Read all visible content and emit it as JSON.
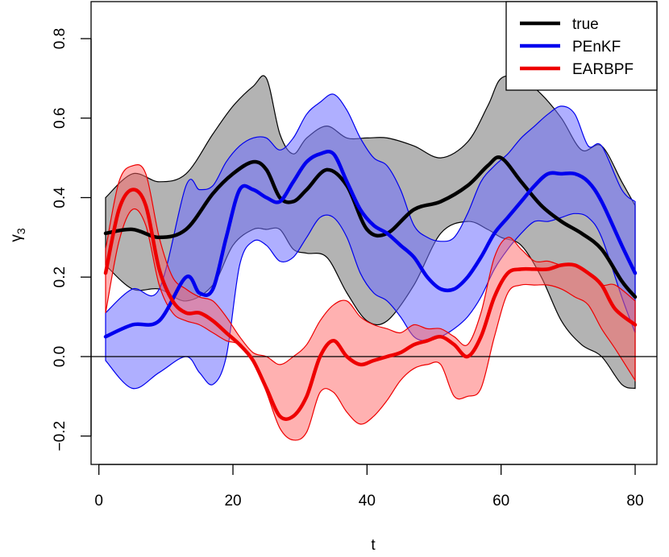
{
  "chart_data": {
    "type": "line",
    "xlabel": "t",
    "ylabel_base": "γ",
    "ylabel_sub": "3",
    "xlim": [
      1,
      80
    ],
    "ylim": [
      -0.3,
      0.9
    ],
    "xticks": [
      0,
      20,
      40,
      60,
      80
    ],
    "yticks": [
      -0.2,
      0.0,
      0.2,
      0.4,
      0.6,
      0.8
    ],
    "xtick_labels": [
      "0",
      "20",
      "40",
      "60",
      "80"
    ],
    "ytick_labels": [
      "−0.2",
      "0.0",
      "0.2",
      "0.4",
      "0.6",
      "0.8"
    ],
    "hline": 0.0,
    "legend_position": "top-right",
    "series": [
      {
        "name": "true",
        "color": "#000000",
        "band_fill": "rgba(128,128,128,0.6)",
        "x": [
          1,
          5,
          9,
          13,
          17,
          20,
          23,
          25,
          27,
          29,
          31,
          34,
          37,
          40,
          43,
          47,
          51,
          55,
          58,
          60,
          63,
          66,
          69,
          72,
          75,
          78,
          80
        ],
        "value": [
          0.31,
          0.32,
          0.3,
          0.32,
          0.41,
          0.46,
          0.49,
          0.47,
          0.4,
          0.39,
          0.42,
          0.47,
          0.43,
          0.32,
          0.31,
          0.37,
          0.39,
          0.43,
          0.48,
          0.5,
          0.44,
          0.38,
          0.34,
          0.31,
          0.27,
          0.19,
          0.15
        ],
        "lower": [
          0.23,
          0.17,
          0.17,
          0.14,
          0.18,
          0.28,
          0.32,
          0.32,
          0.32,
          0.27,
          0.26,
          0.25,
          0.16,
          0.09,
          0.09,
          0.18,
          0.31,
          0.34,
          0.32,
          0.3,
          0.28,
          0.2,
          0.09,
          0.03,
          0.0,
          -0.07,
          -0.08
        ],
        "upper": [
          0.4,
          0.46,
          0.44,
          0.46,
          0.56,
          0.63,
          0.68,
          0.7,
          0.56,
          0.51,
          0.55,
          0.58,
          0.55,
          0.55,
          0.55,
          0.53,
          0.5,
          0.54,
          0.63,
          0.7,
          0.7,
          0.66,
          0.6,
          0.52,
          0.53,
          0.44,
          0.38
        ]
      },
      {
        "name": "PEnKF",
        "color": "#0000ee",
        "band_fill": "rgba(110,110,255,0.55)",
        "x": [
          1,
          5,
          9,
          13,
          15,
          17,
          19,
          21,
          23,
          25,
          27,
          29,
          31,
          33,
          35,
          37,
          39,
          41,
          43,
          45,
          47,
          49,
          51,
          53,
          55,
          57,
          59,
          61,
          63,
          65,
          67,
          69,
          71,
          73,
          75,
          78,
          80
        ],
        "value": [
          0.05,
          0.08,
          0.09,
          0.2,
          0.16,
          0.17,
          0.3,
          0.42,
          0.42,
          0.4,
          0.39,
          0.44,
          0.49,
          0.51,
          0.51,
          0.44,
          0.37,
          0.33,
          0.31,
          0.28,
          0.25,
          0.2,
          0.17,
          0.17,
          0.2,
          0.25,
          0.31,
          0.35,
          0.39,
          0.43,
          0.46,
          0.46,
          0.46,
          0.44,
          0.39,
          0.28,
          0.21
        ],
        "lower": [
          -0.01,
          -0.08,
          -0.04,
          0.0,
          -0.04,
          -0.07,
          0.0,
          0.23,
          0.29,
          0.28,
          0.24,
          0.25,
          0.3,
          0.35,
          0.35,
          0.3,
          0.21,
          0.16,
          0.14,
          0.1,
          0.05,
          0.04,
          0.05,
          0.07,
          0.1,
          0.15,
          0.22,
          0.27,
          0.31,
          0.34,
          0.34,
          0.35,
          0.36,
          0.35,
          0.3,
          0.15,
          0.06
        ],
        "upper": [
          0.11,
          0.17,
          0.17,
          0.43,
          0.42,
          0.43,
          0.49,
          0.53,
          0.55,
          0.55,
          0.52,
          0.55,
          0.61,
          0.64,
          0.66,
          0.62,
          0.55,
          0.5,
          0.48,
          0.42,
          0.33,
          0.3,
          0.29,
          0.3,
          0.36,
          0.44,
          0.48,
          0.51,
          0.55,
          0.58,
          0.61,
          0.63,
          0.61,
          0.53,
          0.53,
          0.42,
          0.39
        ]
      },
      {
        "name": "EARBPF",
        "color": "#ee0000",
        "band_fill": "rgba(255,100,100,0.5)",
        "x": [
          1,
          3,
          5,
          7,
          9,
          11,
          13,
          15,
          17,
          19,
          21,
          23,
          25,
          27,
          29,
          31,
          33,
          35,
          37,
          39,
          41,
          43,
          45,
          47,
          49,
          51,
          53,
          55,
          57,
          59,
          61,
          63,
          65,
          67,
          69,
          71,
          73,
          75,
          77,
          80
        ],
        "value": [
          0.21,
          0.37,
          0.42,
          0.38,
          0.22,
          0.14,
          0.11,
          0.11,
          0.09,
          0.06,
          0.03,
          -0.01,
          -0.08,
          -0.15,
          -0.15,
          -0.1,
          0.0,
          0.04,
          0.0,
          -0.02,
          -0.01,
          0.0,
          0.01,
          0.03,
          0.04,
          0.05,
          0.03,
          0.0,
          0.05,
          0.15,
          0.21,
          0.22,
          0.22,
          0.22,
          0.23,
          0.23,
          0.21,
          0.18,
          0.12,
          0.08
        ],
        "lower": [
          0.11,
          0.29,
          0.37,
          0.33,
          0.18,
          0.11,
          0.09,
          0.08,
          0.06,
          0.04,
          0.03,
          -0.01,
          -0.09,
          -0.18,
          -0.21,
          -0.19,
          -0.09,
          -0.09,
          -0.14,
          -0.17,
          -0.15,
          -0.11,
          -0.06,
          -0.03,
          -0.02,
          -0.02,
          -0.1,
          -0.1,
          -0.08,
          0.05,
          0.16,
          0.18,
          0.18,
          0.18,
          0.17,
          0.15,
          0.13,
          0.07,
          0.02,
          -0.06
        ],
        "upper": [
          0.27,
          0.44,
          0.48,
          0.46,
          0.3,
          0.2,
          0.17,
          0.15,
          0.14,
          0.1,
          0.05,
          0.01,
          0.0,
          -0.02,
          0.0,
          0.03,
          0.09,
          0.13,
          0.14,
          0.1,
          0.08,
          0.07,
          0.06,
          0.08,
          0.07,
          0.07,
          0.05,
          0.03,
          0.11,
          0.25,
          0.3,
          0.27,
          0.24,
          0.24,
          0.23,
          0.23,
          0.21,
          0.18,
          0.18,
          0.14
        ]
      }
    ]
  }
}
